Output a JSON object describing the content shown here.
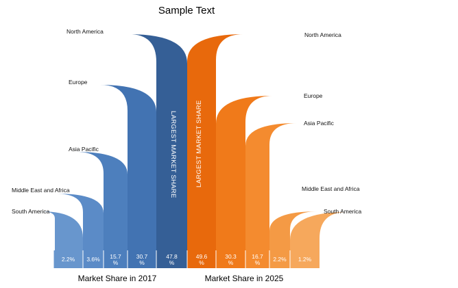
{
  "chart_data": {
    "type": "bar",
    "title": "Sample Text",
    "categories": [
      "North America",
      "Europe",
      "Asia Pacific",
      "Middle East and Africa",
      "South America"
    ],
    "series": [
      {
        "name": "Market Share in 2017",
        "values": [
          47.8,
          30.7,
          15.7,
          3.6,
          2.2
        ],
        "value_labels": [
          "47.8\n%",
          "30.7\n%",
          "15.7\n%",
          "3.6%",
          "2.2%"
        ],
        "highlight_label": "LARGEST MARKET SHARE",
        "color": "#3e6fae"
      },
      {
        "name": "Market Share in 2025",
        "values": [
          49.6,
          30.3,
          16.7,
          2.2,
          1.2
        ],
        "value_labels": [
          "49.6\n%",
          "30.3\n%",
          "16.7\n%",
          "2.2%",
          "1.2%"
        ],
        "highlight_label": "LARGEST MARKET SHARE",
        "color": "#ee7313"
      }
    ],
    "colors": {
      "blue_shades": [
        "#355f96",
        "#4273b2",
        "#4d7fbd",
        "#5b8bc7",
        "#6896cd"
      ],
      "orange_shades": [
        "#e8690c",
        "#f07a1a",
        "#f48b2f",
        "#f49a45",
        "#f6a85c"
      ]
    }
  }
}
